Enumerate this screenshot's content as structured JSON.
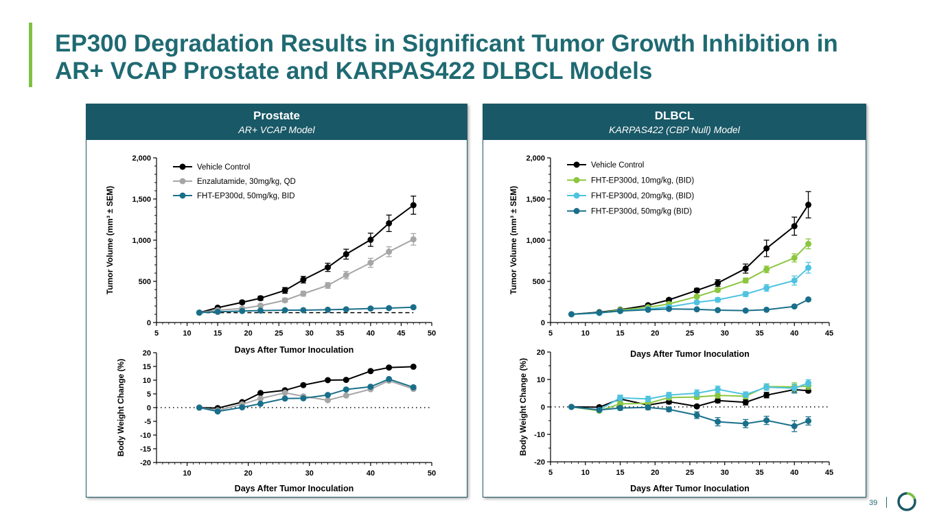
{
  "title": "EP300 Degradation Results in Significant Tumor Growth Inhibition in AR+ VCAP Prostate and KARPAS422 DLBCL Models",
  "page_number": "39",
  "colors": {
    "accent": "#7dc243",
    "header_bg": "#195866",
    "title_text": "#1f6a72"
  },
  "panels": {
    "prostate": {
      "title": "Prostate",
      "subtitle": "AR+ VCAP Model"
    },
    "dlbcl": {
      "title": "DLBCL",
      "subtitle": "KARPAS422 (CBP Null) Model"
    }
  },
  "chart_data": [
    {
      "id": "prostate-tumor",
      "type": "line",
      "ylabel": "Tumor Volume (mm³ ± SEM)",
      "xlabel": "Days After Tumor Inoculation",
      "xlim": [
        5,
        50
      ],
      "ylim": [
        0,
        2000
      ],
      "xticks": [
        5,
        10,
        15,
        20,
        25,
        30,
        35,
        40,
        45,
        50
      ],
      "yticks": [
        0,
        500,
        1000,
        1500,
        2000
      ],
      "ytick_labels": [
        "0",
        "500",
        "1,000",
        "1,500",
        "2,000"
      ],
      "reference_line": {
        "y": 120,
        "x_from": 12,
        "x_to": 47,
        "style": "dashed"
      },
      "legend": "top-left",
      "series": [
        {
          "name": "Vehicle  Control",
          "color": "#000000",
          "x": [
            12,
            15,
            19,
            22,
            26,
            29,
            33,
            36,
            40,
            43,
            47
          ],
          "y": [
            120,
            180,
            245,
            295,
            390,
            520,
            670,
            830,
            1005,
            1205,
            1425
          ],
          "err": [
            10,
            15,
            20,
            25,
            35,
            40,
            50,
            60,
            80,
            100,
            110
          ]
        },
        {
          "name": "Enzalutamide, 30mg/kg, QD",
          "color": "#a6a6a6",
          "x": [
            12,
            15,
            19,
            22,
            26,
            29,
            33,
            36,
            40,
            43,
            47
          ],
          "y": [
            120,
            150,
            170,
            205,
            270,
            350,
            450,
            575,
            725,
            860,
            1010
          ],
          "err": [
            8,
            10,
            15,
            18,
            25,
            30,
            35,
            45,
            55,
            60,
            70
          ]
        },
        {
          "name": "FHT-EP300d, 50mg/kg, BID",
          "color": "#196f8a",
          "x": [
            12,
            15,
            19,
            22,
            26,
            29,
            33,
            36,
            40,
            43,
            47
          ],
          "y": [
            120,
            130,
            140,
            145,
            150,
            150,
            155,
            160,
            170,
            175,
            185
          ],
          "err": [
            5,
            8,
            10,
            10,
            10,
            10,
            10,
            12,
            12,
            12,
            15
          ]
        }
      ]
    },
    {
      "id": "prostate-weight",
      "type": "line",
      "ylabel": "Body Weight Change (%)",
      "xlabel": "Days After Tumor Inoculation",
      "xlim": [
        5,
        50
      ],
      "ylim": [
        -20,
        20
      ],
      "xticks": [
        10,
        20,
        30,
        40,
        50
      ],
      "yticks": [
        -20,
        -15,
        -10,
        -5,
        0,
        5,
        10,
        15,
        20
      ],
      "ytick_labels": [
        "-20",
        "-15",
        "-10",
        "-5",
        "0",
        "5",
        "10",
        "15",
        "20"
      ],
      "zero_line": "dotted",
      "series": [
        {
          "name": "Vehicle  Control",
          "color": "#000000",
          "x": [
            12,
            15,
            19,
            22,
            26,
            29,
            33,
            36,
            40,
            43,
            47
          ],
          "y": [
            0,
            -0.2,
            2,
            5.3,
            6.3,
            8.2,
            10,
            10.1,
            13.3,
            14.6,
            14.9
          ]
        },
        {
          "name": "Enzalutamide, 30mg/kg, QD",
          "color": "#a6a6a6",
          "x": [
            12,
            15,
            19,
            22,
            26,
            29,
            33,
            36,
            40,
            43,
            47
          ],
          "y": [
            0,
            -1,
            1.2,
            3.3,
            5.4,
            4.1,
            2.7,
            4.4,
            6.7,
            9.8,
            6.8
          ]
        },
        {
          "name": "FHT-EP300d, 50mg/kg, BID",
          "color": "#196f8a",
          "x": [
            12,
            15,
            19,
            22,
            26,
            29,
            33,
            36,
            40,
            43,
            47
          ],
          "y": [
            0,
            -1.4,
            0.1,
            1.4,
            3.3,
            3.4,
            4.6,
            6.6,
            7.6,
            10.4,
            7.4
          ]
        }
      ]
    },
    {
      "id": "dlbcl-tumor",
      "type": "line",
      "ylabel": "Tumor Volume (mm³ ± SEM)",
      "xlabel": "Days After Tumor Inoculation",
      "xlim": [
        5,
        45
      ],
      "ylim": [
        0,
        2000
      ],
      "xticks": [
        5,
        10,
        15,
        20,
        25,
        30,
        35,
        40,
        45
      ],
      "yticks": [
        0,
        500,
        1000,
        1500,
        2000
      ],
      "ytick_labels": [
        "0",
        "500",
        "1,000",
        "1,500",
        "2,000"
      ],
      "legend": "top-left",
      "series": [
        {
          "name": "Vehicle Control",
          "color": "#000000",
          "x": [
            8,
            12,
            15,
            19,
            22,
            26,
            29,
            33,
            36,
            40,
            42
          ],
          "y": [
            100,
            125,
            155,
            210,
            275,
            390,
            480,
            655,
            900,
            1170,
            1430
          ],
          "err": [
            5,
            10,
            10,
            15,
            20,
            25,
            40,
            55,
            100,
            110,
            160
          ]
        },
        {
          "name": "FHT-EP300d, 10mg/kg, (BID)",
          "color": "#8cc63f",
          "x": [
            8,
            12,
            15,
            19,
            22,
            26,
            29,
            33,
            36,
            40,
            42
          ],
          "y": [
            100,
            120,
            150,
            185,
            225,
            315,
            395,
            510,
            645,
            785,
            955
          ],
          "err": [
            5,
            8,
            10,
            12,
            15,
            20,
            25,
            30,
            40,
            50,
            60
          ]
        },
        {
          "name": "FHT-EP300d, 20mg/kg, (BID)",
          "color": "#4ec3e0",
          "x": [
            8,
            12,
            15,
            19,
            22,
            26,
            29,
            33,
            36,
            40,
            42
          ],
          "y": [
            100,
            115,
            140,
            165,
            190,
            245,
            275,
            345,
            420,
            510,
            665
          ],
          "err": [
            5,
            8,
            10,
            12,
            15,
            20,
            25,
            30,
            40,
            55,
            65
          ]
        },
        {
          "name": "FHT-EP300d, 50mg/kg (BID)",
          "color": "#196f8a",
          "x": [
            8,
            12,
            15,
            19,
            22,
            26,
            29,
            33,
            36,
            40,
            42
          ],
          "y": [
            100,
            120,
            140,
            155,
            165,
            160,
            150,
            145,
            155,
            195,
            280
          ],
          "err": [
            5,
            5,
            8,
            8,
            8,
            8,
            8,
            8,
            10,
            12,
            15
          ]
        }
      ]
    },
    {
      "id": "dlbcl-weight",
      "type": "line",
      "ylabel": "Body Weight Change (%)",
      "xlabel": "Days After Tumor Inoculation",
      "xlim": [
        5,
        45
      ],
      "ylim": [
        -20,
        20
      ],
      "xticks": [
        5,
        10,
        15,
        20,
        25,
        30,
        35,
        40,
        45
      ],
      "yticks": [
        -20,
        -10,
        0,
        10,
        20
      ],
      "ytick_labels": [
        "-20",
        "-10",
        "0",
        "10",
        "20"
      ],
      "zero_line": "dotted",
      "series": [
        {
          "name": "Vehicle Control",
          "color": "#000000",
          "x": [
            8,
            12,
            15,
            19,
            22,
            26,
            29,
            33,
            36,
            40,
            42
          ],
          "y": [
            0,
            -0.1,
            2.9,
            0.7,
            1.9,
            0.2,
            2.3,
            1.7,
            4.3,
            6.3,
            5.9
          ],
          "err": [
            0.3,
            0.5,
            1.3,
            0.8,
            0.8,
            0.5,
            0.8,
            1,
            1,
            1.2,
            0.6
          ]
        },
        {
          "name": "FHT-EP300d, 10mg/kg, (BID)",
          "color": "#8cc63f",
          "x": [
            8,
            12,
            15,
            19,
            22,
            26,
            29,
            33,
            36,
            40,
            42
          ],
          "y": [
            0,
            -1.4,
            1.1,
            1.3,
            3.4,
            3.6,
            4.2,
            3.9,
            7.4,
            7.3,
            7.6
          ],
          "err": [
            0.3,
            0.5,
            0.8,
            0.8,
            0.8,
            0.8,
            1,
            1,
            1,
            1.5,
            1.2
          ]
        },
        {
          "name": "FHT-EP300d, 20mg/kg, (BID)",
          "color": "#4ec3e0",
          "x": [
            8,
            12,
            15,
            19,
            22,
            26,
            29,
            33,
            36,
            40,
            42
          ],
          "y": [
            0,
            -1.1,
            3.3,
            2.9,
            4.3,
            5,
            6.4,
            4.5,
            7.2,
            6.8,
            8.7
          ],
          "err": [
            0.3,
            0.5,
            1,
            1,
            1,
            1.2,
            1.2,
            1,
            1.2,
            1.5,
            1.2
          ]
        },
        {
          "name": "FHT-EP300d, 50mg/kg (BID)",
          "color": "#196f8a",
          "x": [
            8,
            12,
            15,
            19,
            22,
            26,
            29,
            33,
            36,
            40,
            42
          ],
          "y": [
            0,
            -1.1,
            -0.4,
            -0.2,
            -0.9,
            -3,
            -5.4,
            -6.1,
            -4.9,
            -7,
            -5.1
          ],
          "err": [
            0.3,
            0.5,
            0.8,
            0.8,
            0.8,
            1.2,
            1.5,
            1.5,
            1.5,
            2,
            1.5
          ]
        }
      ]
    }
  ]
}
